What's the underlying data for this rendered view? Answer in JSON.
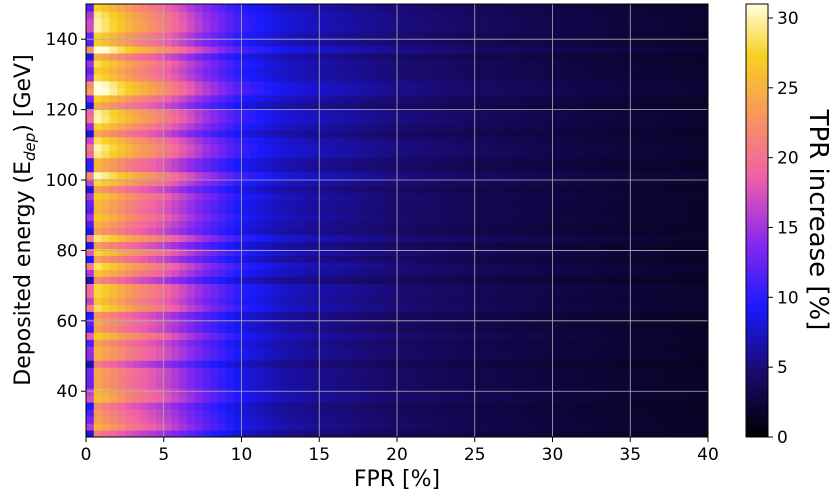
{
  "chart_data": {
    "type": "heatmap",
    "title": "",
    "xlabel": "FPR [%]",
    "ylabel_main": "Deposited energy (E",
    "ylabel_sub": "dep",
    "ylabel_end": ") [GeV]",
    "xlim": [
      0,
      40
    ],
    "ylim": [
      27,
      150
    ],
    "x_ticks": [
      0,
      5,
      10,
      15,
      20,
      25,
      30,
      35,
      40
    ],
    "y_ticks": [
      40,
      60,
      80,
      100,
      120,
      140
    ],
    "grid": true,
    "colormap": "gnuplot2",
    "colorbar": {
      "label": "TPR increase [%]",
      "range": [
        0,
        31
      ],
      "ticks": [
        0,
        5,
        10,
        15,
        20,
        25,
        30
      ]
    },
    "description_profile": {
      "fpr_percent": [
        0,
        0.5,
        1,
        2,
        3,
        5,
        7.5,
        10,
        12.5,
        15,
        20,
        25,
        30,
        35,
        40
      ],
      "tpr_increase_percent": [
        12,
        26,
        25,
        23,
        21,
        18,
        13,
        9,
        7,
        6,
        4.5,
        3.5,
        2.8,
        2.2,
        1.8
      ]
    },
    "colormap_stops": [
      {
        "value": 0,
        "color": "#000000"
      },
      {
        "value": 0.15,
        "color": "#1a0a6e"
      },
      {
        "value": 0.3,
        "color": "#1a1aff"
      },
      {
        "value": 0.45,
        "color": "#8a28ee"
      },
      {
        "value": 0.6,
        "color": "#f060a8"
      },
      {
        "value": 0.75,
        "color": "#f89a58"
      },
      {
        "value": 0.88,
        "color": "#f8d020"
      },
      {
        "value": 1.0,
        "color": "#ffffdd"
      }
    ]
  }
}
